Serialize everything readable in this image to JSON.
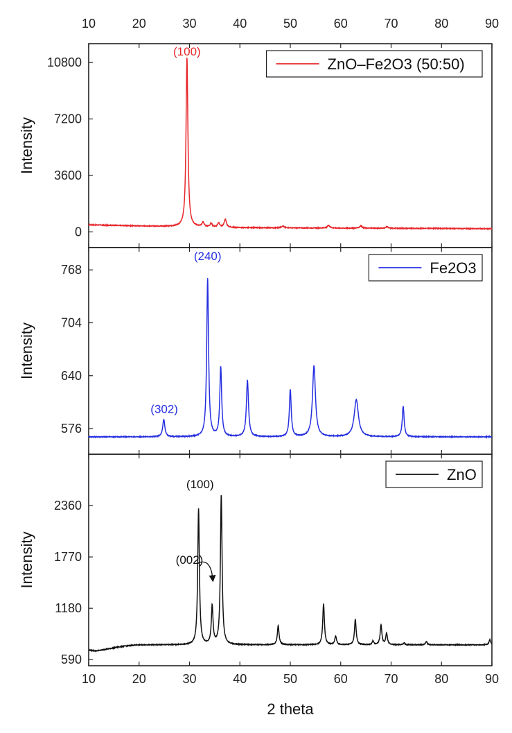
{
  "chart_data": {
    "type": "line",
    "xlabel": "2 theta",
    "xlim": [
      10,
      90
    ],
    "x_ticks": [
      "10",
      "20",
      "30",
      "40",
      "50",
      "60",
      "70",
      "80",
      "90"
    ],
    "grid": false,
    "panels": [
      {
        "ylabel": "Intensity",
        "ylim": [
          -1000,
          12000
        ],
        "y_ticks": [
          0,
          3600,
          7200,
          10800
        ],
        "y_tick_labels": [
          "0",
          "3600",
          "7200",
          "10800"
        ],
        "color": "#e8262b",
        "baseline": {
          "x": [
            10,
            20,
            29,
            40,
            60,
            80,
            90
          ],
          "y": [
            450,
            380,
            330,
            270,
            240,
            220,
            200
          ]
        },
        "peaks": [
          {
            "x": 29.5,
            "h": 10800,
            "w": 0.22
          },
          {
            "x": 32.7,
            "h": 280,
            "w": 0.25
          },
          {
            "x": 34.3,
            "h": 220,
            "w": 0.25
          },
          {
            "x": 35.8,
            "h": 260,
            "w": 0.25
          },
          {
            "x": 37.1,
            "h": 520,
            "w": 0.25
          },
          {
            "x": 48.5,
            "h": 110,
            "w": 0.3
          },
          {
            "x": 57.6,
            "h": 170,
            "w": 0.3
          },
          {
            "x": 64.0,
            "h": 150,
            "w": 0.3
          },
          {
            "x": 69.2,
            "h": 90,
            "w": 0.3
          }
        ],
        "series": [
          {
            "name": "ZnO–Fe2O3 (50:50)"
          }
        ],
        "legend_position": "top-right",
        "annotations": [
          {
            "text": "(100)",
            "x": 29.5,
            "y": 11250
          }
        ]
      },
      {
        "ylabel": "Intensity",
        "ylim": [
          545,
          795
        ],
        "y_ticks": [
          576,
          640,
          704,
          768
        ],
        "y_tick_labels": [
          "576",
          "640",
          "704",
          "768"
        ],
        "color": "#2630e0",
        "baseline": {
          "x": [
            10,
            90
          ],
          "y": [
            566,
            566
          ]
        },
        "peaks": [
          {
            "x": 24.9,
            "h": 21,
            "w": 0.25
          },
          {
            "x": 33.6,
            "h": 191,
            "w": 0.22
          },
          {
            "x": 36.2,
            "h": 84,
            "w": 0.22
          },
          {
            "x": 41.5,
            "h": 68,
            "w": 0.25
          },
          {
            "x": 50.0,
            "h": 57,
            "w": 0.22
          },
          {
            "x": 54.7,
            "h": 86,
            "w": 0.35
          },
          {
            "x": 63.1,
            "h": 45,
            "w": 0.5
          },
          {
            "x": 72.4,
            "h": 37,
            "w": 0.22
          }
        ],
        "series": [
          {
            "name": "Fe2O3"
          }
        ],
        "legend_position": "top-right",
        "annotations": [
          {
            "text": "(240)",
            "x": 33.6,
            "y": 780
          },
          {
            "text": "(302)",
            "x": 25.0,
            "y": 595
          }
        ]
      },
      {
        "ylabel": "Intensity",
        "ylim": [
          520,
          2950
        ],
        "y_ticks": [
          590,
          1180,
          1770,
          2360
        ],
        "y_tick_labels": [
          "590",
          "1180",
          "1770",
          "2360"
        ],
        "color": "#111111",
        "baseline": {
          "x": [
            10,
            11.5,
            17,
            20,
            90
          ],
          "y": [
            700,
            690,
            745,
            760,
            760
          ]
        },
        "peaks": [
          {
            "x": 31.8,
            "h": 1560,
            "w": 0.2
          },
          {
            "x": 34.5,
            "h": 440,
            "w": 0.2
          },
          {
            "x": 36.3,
            "h": 1720,
            "w": 0.2
          },
          {
            "x": 47.6,
            "h": 220,
            "w": 0.2
          },
          {
            "x": 56.6,
            "h": 470,
            "w": 0.2
          },
          {
            "x": 59.0,
            "h": 100,
            "w": 0.2
          },
          {
            "x": 62.9,
            "h": 290,
            "w": 0.2
          },
          {
            "x": 66.4,
            "h": 40,
            "w": 0.2
          },
          {
            "x": 68.0,
            "h": 230,
            "w": 0.2
          },
          {
            "x": 69.1,
            "h": 130,
            "w": 0.2
          },
          {
            "x": 72.6,
            "h": 20,
            "w": 0.2
          },
          {
            "x": 77.0,
            "h": 40,
            "w": 0.2
          },
          {
            "x": 89.6,
            "h": 60,
            "w": 0.2
          }
        ],
        "series": [
          {
            "name": "ZnO"
          }
        ],
        "legend_position": "top-right",
        "annotations": [
          {
            "text": "(100)",
            "x": 32.1,
            "y": 2560
          },
          {
            "text": "(002)",
            "x": 30.0,
            "y": 1690
          }
        ]
      }
    ]
  }
}
